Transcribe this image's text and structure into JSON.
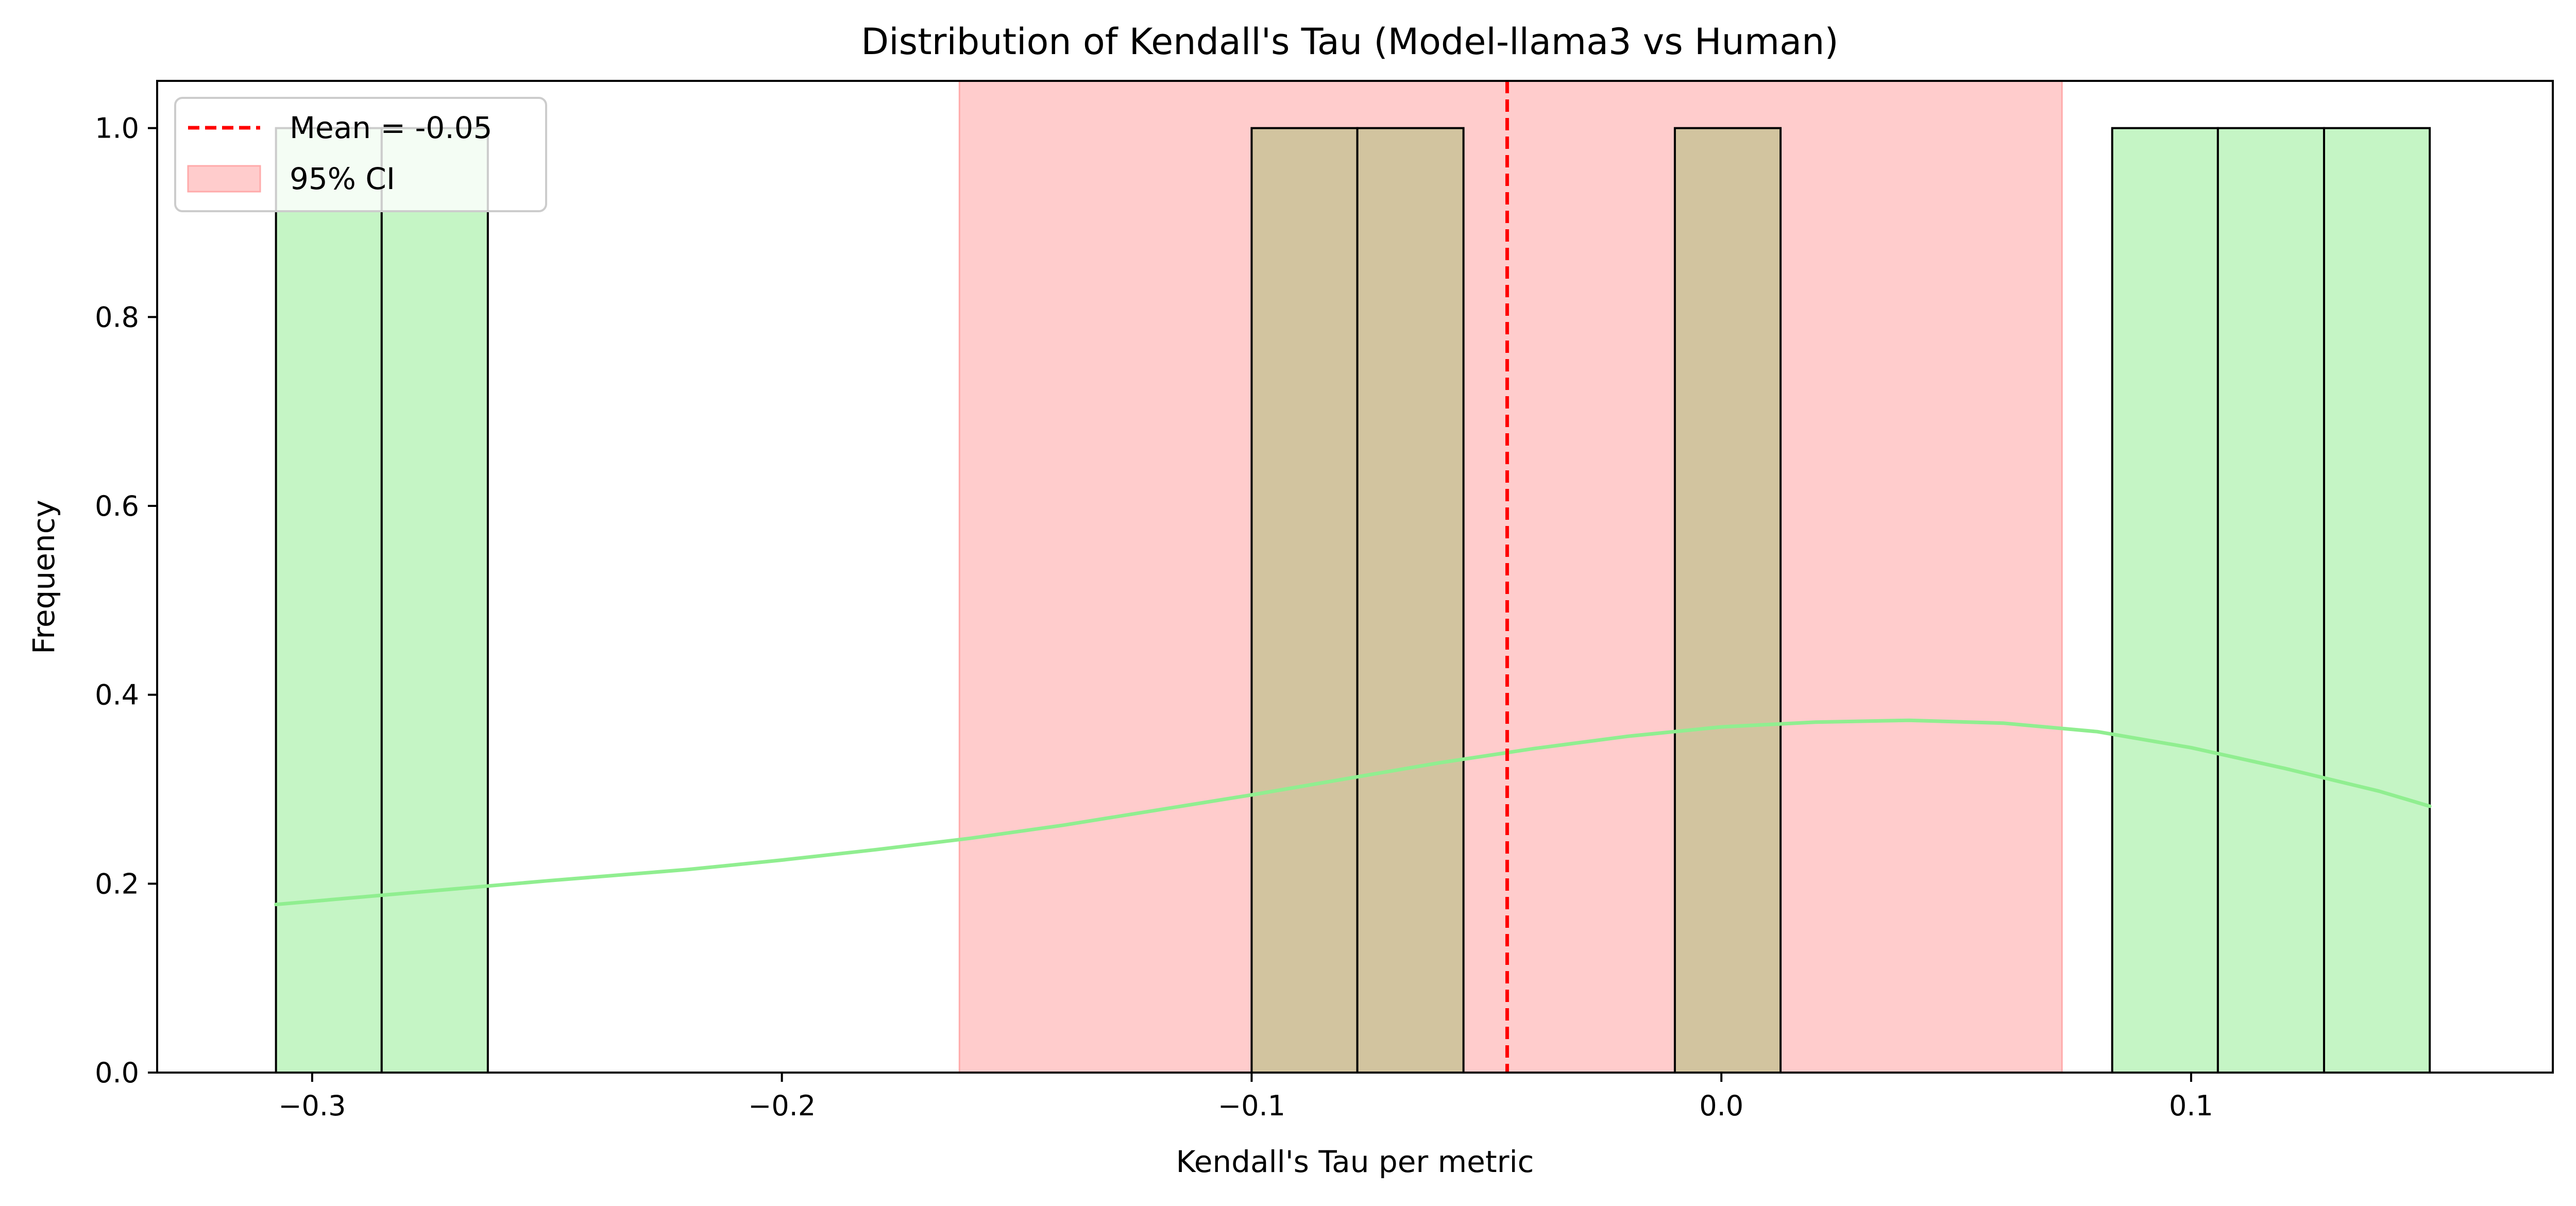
{
  "chart_data": {
    "type": "bar",
    "subtype": "histogram with KDE",
    "title": "Distribution of Kendall's Tau (Model-llama3 vs Human)",
    "xlabel": "Kendall's Tau per metric",
    "ylabel": "Frequency",
    "xlim": [
      -0.333,
      0.177
    ],
    "ylim": [
      0,
      1.05
    ],
    "x_ticks": [
      -0.3,
      -0.2,
      -0.1,
      0.0,
      0.1
    ],
    "x_tick_labels": [
      "−0.3",
      "−0.2",
      "−0.1",
      "0.0",
      "0.1"
    ],
    "y_ticks": [
      0.0,
      0.2,
      0.4,
      0.6,
      0.8,
      1.0
    ],
    "y_tick_labels": [
      "0.0",
      "0.2",
      "0.4",
      "0.6",
      "0.8",
      "1.0"
    ],
    "bin_width": 0.02253,
    "bins": [
      {
        "x_start": -0.3077,
        "x_end": -0.2852,
        "count": 1
      },
      {
        "x_start": -0.2852,
        "x_end": -0.2626,
        "count": 1
      },
      {
        "x_start": -0.1,
        "x_end": -0.0775,
        "count": 1
      },
      {
        "x_start": -0.0775,
        "x_end": -0.0549,
        "count": 1
      },
      {
        "x_start": -0.0099,
        "x_end": 0.0126,
        "count": 1
      },
      {
        "x_start": 0.0832,
        "x_end": 0.1057,
        "count": 1
      },
      {
        "x_start": 0.1057,
        "x_end": 0.1283,
        "count": 1
      },
      {
        "x_start": 0.1283,
        "x_end": 0.1508,
        "count": 1
      }
    ],
    "kde": {
      "x": [
        -0.3077,
        -0.28,
        -0.25,
        -0.22,
        -0.2,
        -0.18,
        -0.16,
        -0.14,
        -0.12,
        -0.1,
        -0.08,
        -0.06,
        -0.04,
        -0.02,
        0.0,
        0.02,
        0.04,
        0.06,
        0.08,
        0.1,
        0.12,
        0.14,
        0.1508
      ],
      "y": [
        0.178,
        0.19,
        0.203,
        0.215,
        0.225,
        0.236,
        0.248,
        0.262,
        0.278,
        0.294,
        0.311,
        0.328,
        0.343,
        0.356,
        0.366,
        0.371,
        0.373,
        0.37,
        0.361,
        0.344,
        0.322,
        0.298,
        0.282
      ]
    },
    "mean": -0.0456,
    "ci_95": [
      -0.1622,
      0.0725
    ],
    "legend": {
      "position": "upper left",
      "entries": [
        "Mean = -0.05",
        "95% CI"
      ]
    },
    "colors": {
      "bar_fill": "#c5f5c5",
      "bar_overlap_fill": "#d2c49f",
      "bar_edge": "#000000",
      "kde_line": "#90ee90",
      "mean_line": "#ff0000",
      "ci_fill": "#ffcccc",
      "ci_edge": "#ffaaaa"
    },
    "grid": false
  }
}
